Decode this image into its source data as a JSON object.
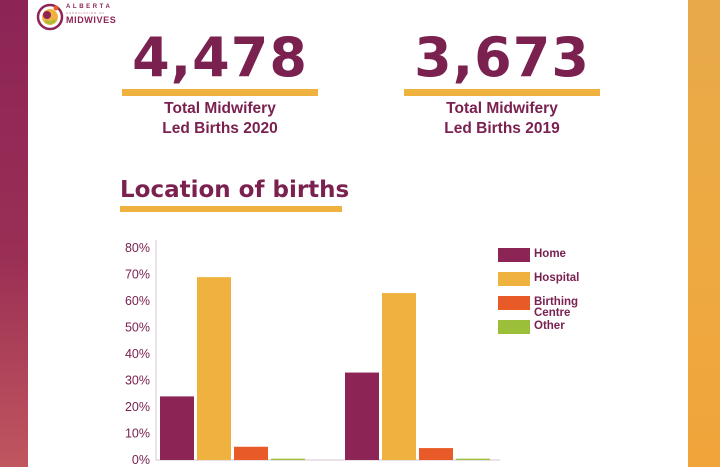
{
  "logo": {
    "top_line": "ALBERTA",
    "middle_line": "ASSOCIATION OF",
    "bottom_line": "MIDWIVES"
  },
  "stats": [
    {
      "number": "4,478",
      "label": "Total Midwifery\nLed Births 2020"
    },
    {
      "number": "3,673",
      "label": "Total Midwifery\nLed Births 2019"
    }
  ],
  "section_title": "Location of births",
  "colors": {
    "brand": "#7a2150",
    "accent": "#efb23e",
    "home": "#8c2456",
    "hospital": "#efb23e",
    "birthing_centre": "#e85a27",
    "other": "#9cbf3a"
  },
  "chart_data": {
    "type": "bar",
    "categories": [
      "",
      ""
    ],
    "series": [
      {
        "name": "Home",
        "values": [
          24,
          33
        ]
      },
      {
        "name": "Hospital",
        "values": [
          69,
          63
        ]
      },
      {
        "name": "Birthing\nCentre",
        "values": [
          5,
          4.5
        ]
      },
      {
        "name": "Other",
        "values": [
          0.5,
          0.5
        ]
      }
    ],
    "yticks": [
      "80%",
      "70%",
      "60%",
      "50%",
      "40%",
      "30%",
      "20%",
      "10%",
      "0%"
    ],
    "ylim": [
      0,
      80
    ],
    "legend_position": "right",
    "grid": false
  }
}
